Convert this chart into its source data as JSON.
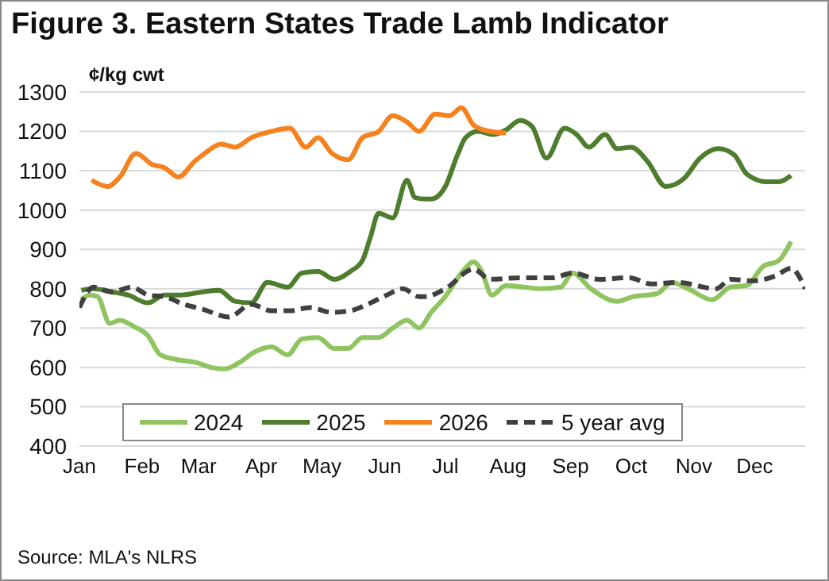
{
  "chart_data": {
    "type": "line",
    "title": "Figure 3. Eastern States Trade Lamb Indicator",
    "ylabel": "¢/kg cwt",
    "annotations": [
      "Source: MLA's NLRS"
    ],
    "xlim": [
      "--01-01",
      "--12-26"
    ],
    "xticks": [
      {
        "value": "--01-01",
        "label": "Jan"
      },
      {
        "value": "--02-01",
        "label": "Feb"
      },
      {
        "value": "--03-01",
        "label": "Mar"
      },
      {
        "value": "--04-01",
        "label": "Apr"
      },
      {
        "value": "--05-01",
        "label": "May"
      },
      {
        "value": "--06-01",
        "label": "Jun"
      },
      {
        "value": "--07-01",
        "label": "Jul"
      },
      {
        "value": "--08-01",
        "label": "Aug"
      },
      {
        "value": "--09-01",
        "label": "Sep"
      },
      {
        "value": "--10-01",
        "label": "Oct"
      },
      {
        "value": "--11-01",
        "label": "Nov"
      },
      {
        "value": "--12-01",
        "label": "Dec"
      }
    ],
    "ylim": [
      400,
      1300
    ],
    "yticks": [
      400,
      500,
      600,
      700,
      800,
      900,
      1000,
      1100,
      1200,
      1300
    ],
    "grid": "y",
    "legend": "bottom",
    "marker": "none",
    "series": [
      {
        "name": "2024",
        "color": "#8fc460",
        "line_style": "solid",
        "x": [
          "--01-02",
          "--01-06",
          "--01-10",
          "--01-16",
          "--01-21",
          "--01-28",
          "--02-04",
          "--02-10",
          "--02-18",
          "--02-28",
          "--03-07",
          "--03-14",
          "--03-21",
          "--03-29",
          "--04-06",
          "--04-14",
          "--04-21",
          "--04-29",
          "--05-07",
          "--05-14",
          "--05-21",
          "--05-29",
          "--06-05",
          "--06-12",
          "--06-18",
          "--06-24",
          "--07-01",
          "--07-09",
          "--07-15",
          "--07-19",
          "--07-24",
          "--07-31",
          "--08-09",
          "--08-17",
          "--08-27",
          "--09-02",
          "--09-11",
          "--09-24",
          "--10-02",
          "--10-14",
          "--10-21",
          "--10-29",
          "--11-10",
          "--11-19",
          "--11-27",
          "--12-05",
          "--12-13",
          "--12-19"
        ],
        "values": [
          772,
          784,
          780,
          712,
          720,
          704,
          680,
          632,
          620,
          612,
          600,
          596,
          612,
          640,
          652,
          632,
          672,
          676,
          648,
          648,
          676,
          676,
          700,
          720,
          700,
          740,
          780,
          840,
          868,
          844,
          784,
          808,
          804,
          800,
          804,
          840,
          800,
          768,
          780,
          788,
          816,
          800,
          772,
          804,
          808,
          856,
          872,
          920
        ]
      },
      {
        "name": "2025",
        "color": "#4e7d2e",
        "line_style": "solid",
        "x": [
          "--01-02",
          "--01-08",
          "--01-17",
          "--01-25",
          "--02-04",
          "--02-12",
          "--02-20",
          "--03-03",
          "--03-11",
          "--03-19",
          "--03-27",
          "--04-04",
          "--04-14",
          "--04-21",
          "--04-29",
          "--05-07",
          "--05-15",
          "--05-21",
          "--05-25",
          "--05-29",
          "--06-05",
          "--06-12",
          "--06-16",
          "--06-21",
          "--06-24",
          "--07-01",
          "--07-07",
          "--07-11",
          "--07-17",
          "--07-25",
          "--07-31",
          "--08-07",
          "--08-13",
          "--08-20",
          "--08-29",
          "--09-04",
          "--09-10",
          "--09-18",
          "--09-24",
          "--10-01",
          "--10-09",
          "--10-18",
          "--10-27",
          "--11-04",
          "--11-13",
          "--11-21",
          "--11-27",
          "--12-07",
          "--12-13",
          "--12-19"
        ],
        "values": [
          796,
          800,
          792,
          784,
          764,
          784,
          784,
          792,
          796,
          768,
          764,
          816,
          804,
          840,
          844,
          824,
          844,
          872,
          932,
          992,
          980,
          1076,
          1032,
          1028,
          1028,
          1060,
          1140,
          1184,
          1200,
          1192,
          1204,
          1228,
          1212,
          1132,
          1208,
          1192,
          1160,
          1192,
          1156,
          1160,
          1124,
          1060,
          1080,
          1132,
          1156,
          1140,
          1092,
          1072,
          1072,
          1088
        ]
      },
      {
        "name": "2026",
        "color": "#f5821f",
        "line_style": "solid",
        "x": [
          "--01-07",
          "--01-15",
          "--01-21",
          "--01-29",
          "--02-06",
          "--02-12",
          "--02-19",
          "--02-27",
          "--03-04",
          "--03-12",
          "--03-19",
          "--03-27",
          "--04-06",
          "--04-15",
          "--04-23",
          "--04-29",
          "--05-06",
          "--05-14",
          "--05-21",
          "--05-29",
          "--06-05",
          "--06-12",
          "--06-18",
          "--06-26",
          "--07-03",
          "--07-09",
          "--07-15",
          "--07-23",
          "--07-31"
        ],
        "values": [
          1076,
          1060,
          1084,
          1144,
          1116,
          1108,
          1084,
          1124,
          1144,
          1168,
          1160,
          1184,
          1200,
          1208,
          1160,
          1184,
          1144,
          1128,
          1184,
          1200,
          1240,
          1224,
          1200,
          1244,
          1240,
          1260,
          1216,
          1200,
          1196
        ]
      },
      {
        "name": "5 year avg",
        "color": "#404040",
        "line_style": "dashed",
        "x": [
          "--01-01",
          "--01-08",
          "--01-17",
          "--01-27",
          "--02-04",
          "--02-12",
          "--02-22",
          "--03-03",
          "--03-16",
          "--03-27",
          "--04-06",
          "--04-15",
          "--04-25",
          "--05-06",
          "--05-15",
          "--05-25",
          "--06-02",
          "--06-10",
          "--06-18",
          "--06-21",
          "--07-01",
          "--07-15",
          "--07-23",
          "--08-07",
          "--08-23",
          "--09-02",
          "--09-15",
          "--09-30",
          "--10-11",
          "--10-24",
          "--11-12",
          "--11-19",
          "--11-30",
          "--12-11",
          "--12-19",
          "--12-26"
        ],
        "values": [
          752,
          804,
          792,
          804,
          784,
          780,
          760,
          748,
          728,
          760,
          744,
          744,
          752,
          740,
          744,
          764,
          784,
          800,
          780,
          780,
          800,
          850,
          824,
          828,
          828,
          840,
          824,
          828,
          812,
          816,
          800,
          824,
          820,
          832,
          852,
          800
        ]
      }
    ]
  }
}
